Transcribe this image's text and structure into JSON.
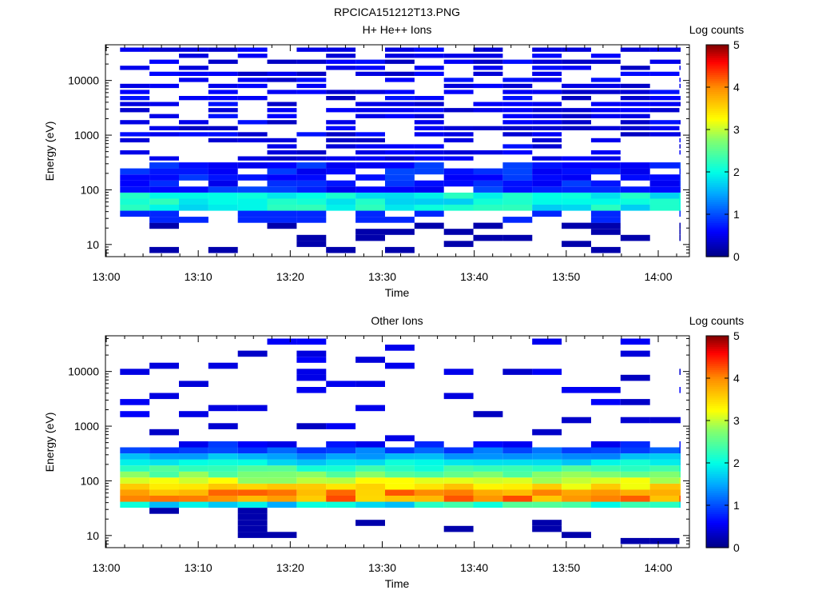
{
  "figure_title": "RPCICA151212T13.PNG",
  "chart_data": [
    {
      "type": "heatmap",
      "title": "H+ He++ Ions",
      "xlabel": "Time",
      "ylabel": "Energy (eV)",
      "x_ticks": [
        "13:00",
        "13:10",
        "13:20",
        "13:30",
        "13:40",
        "13:50",
        "14:00"
      ],
      "y_ticks": [
        "10",
        "100",
        "1000",
        "10000"
      ],
      "y_scale": "log",
      "ylim": [
        6,
        45000
      ],
      "colorbar": {
        "label": "Log counts",
        "range": [
          0,
          5
        ],
        "ticks": [
          "0",
          "1",
          "2",
          "3",
          "4",
          "5"
        ],
        "colormap": "rainbow"
      },
      "time_bins": [
        "13:01-13:04",
        "13:04-13:07",
        "13:07-13:10",
        "13:10-13:13",
        "13:13-13:16",
        "13:16-13:20",
        "13:20-13:23",
        "13:23-13:26",
        "13:26-13:29",
        "13:29-13:32",
        "13:32-13:36",
        "13:36-13:39",
        "13:39-13:42",
        "13:42-13:45",
        "13:45-13:48",
        "13:48-13:52",
        "13:52-13:55",
        "13:55-13:58",
        "13:58-14:01",
        "14:01-14:02"
      ],
      "dominant_band_eV": [
        40,
        80
      ],
      "band_log_counts_approx": 2.0,
      "low_energy_sparse_log_counts": 0.2,
      "high_energy_sparse_log_counts": 0.3
    },
    {
      "type": "heatmap",
      "title": "Other Ions",
      "xlabel": "Time",
      "ylabel": "Energy (eV)",
      "x_ticks": [
        "13:00",
        "13:10",
        "13:20",
        "13:30",
        "13:40",
        "13:50",
        "14:00"
      ],
      "y_ticks": [
        "10",
        "100",
        "1000",
        "10000"
      ],
      "y_scale": "log",
      "ylim": [
        6,
        45000
      ],
      "colorbar": {
        "label": "Log counts",
        "range": [
          0,
          5
        ],
        "ticks": [
          "0",
          "1",
          "2",
          "3",
          "4",
          "5"
        ],
        "colormap": "rainbow"
      },
      "peak_energy_eV": [
        40,
        70
      ],
      "peak_log_counts_approx": 4.3,
      "broad_band_eV": [
        30,
        500
      ],
      "high_energy_sparse_log_counts": 0.3
    }
  ]
}
